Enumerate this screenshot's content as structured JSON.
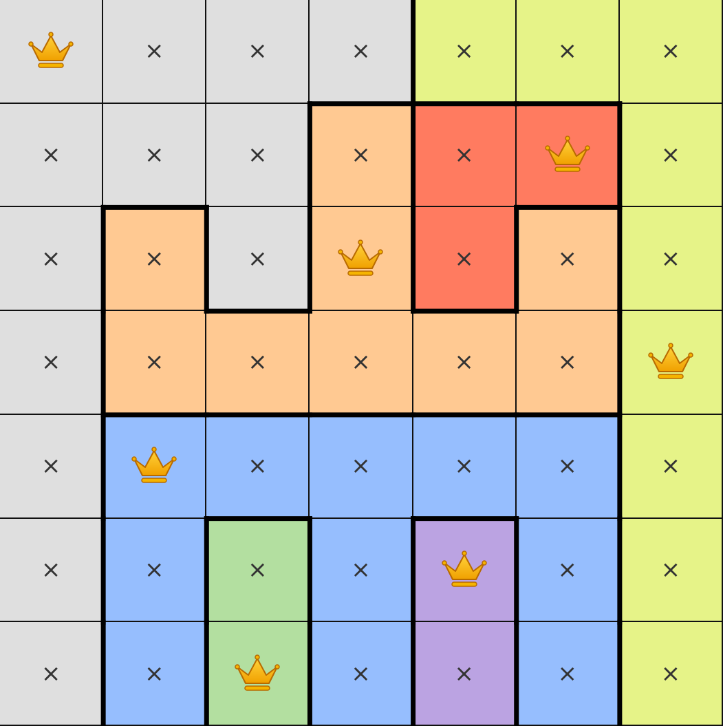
{
  "game": "Queens",
  "size": 7,
  "region_colors": {
    "gray": "#dfdfdf",
    "yellow": "#e6f388",
    "orange": "#ffc992",
    "red": "#ff7b60",
    "blue": "#96befe",
    "green": "#b3dfa0",
    "purple": "#bba3e2"
  },
  "regions": [
    [
      "gray",
      "gray",
      "gray",
      "gray",
      "yellow",
      "yellow",
      "yellow"
    ],
    [
      "gray",
      "gray",
      "gray",
      "orange",
      "red",
      "red",
      "yellow"
    ],
    [
      "gray",
      "orange",
      "gray",
      "orange",
      "red",
      "orange",
      "yellow"
    ],
    [
      "gray",
      "orange",
      "orange",
      "orange",
      "orange",
      "orange",
      "yellow"
    ],
    [
      "gray",
      "blue",
      "blue",
      "blue",
      "blue",
      "blue",
      "yellow"
    ],
    [
      "gray",
      "blue",
      "green",
      "blue",
      "purple",
      "blue",
      "yellow"
    ],
    [
      "gray",
      "blue",
      "green",
      "blue",
      "purple",
      "blue",
      "yellow"
    ]
  ],
  "cells": [
    [
      "Q",
      "x",
      "x",
      "x",
      "x",
      "x",
      "x"
    ],
    [
      "x",
      "x",
      "x",
      "x",
      "x",
      "Q",
      "x"
    ],
    [
      "x",
      "x",
      "x",
      "Q",
      "x",
      "x",
      "x"
    ],
    [
      "x",
      "x",
      "x",
      "x",
      "x",
      "x",
      "Q"
    ],
    [
      "x",
      "Q",
      "x",
      "x",
      "x",
      "x",
      "x"
    ],
    [
      "x",
      "x",
      "x",
      "x",
      "Q",
      "x",
      "x"
    ],
    [
      "x",
      "x",
      "Q",
      "x",
      "x",
      "x",
      "x"
    ]
  ],
  "symbols": {
    "x": "×",
    "Q": "crown-icon"
  }
}
